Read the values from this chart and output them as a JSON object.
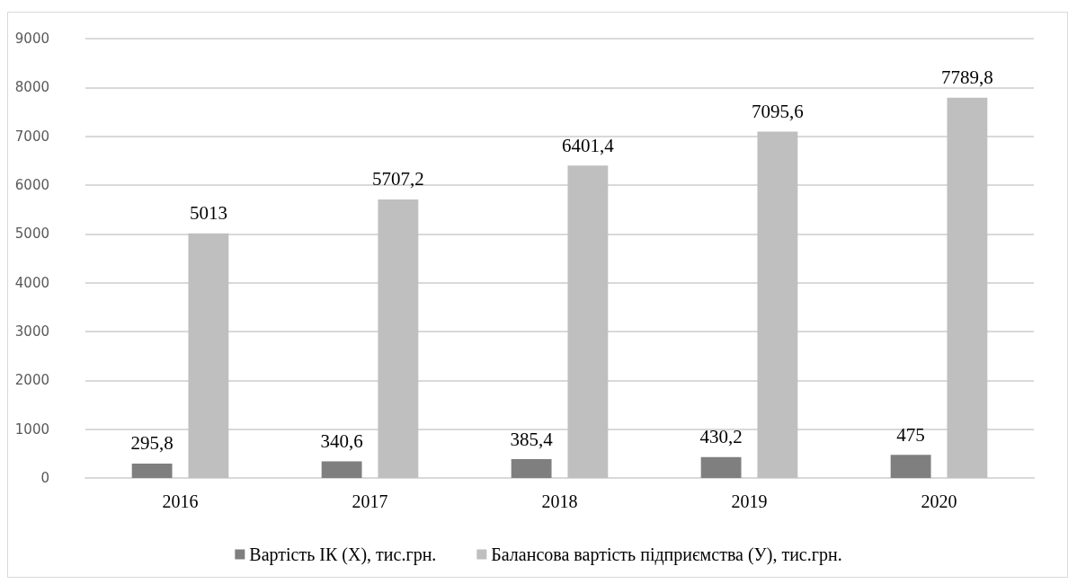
{
  "chart_data": {
    "type": "bar",
    "categories": [
      "2016",
      "2017",
      "2018",
      "2019",
      "2020"
    ],
    "series": [
      {
        "name": "Вартість ІК (Х), тис.грн.",
        "color": "#7f7f7f",
        "values": [
          295.8,
          340.6,
          385.4,
          430.2,
          475
        ],
        "value_labels": [
          "295,8",
          "340,6",
          "385,4",
          "430,2",
          "475"
        ]
      },
      {
        "name": "Балансова вартість підприємства (У), тис.грн.",
        "color": "#bfbfbf",
        "values": [
          5013,
          5707.2,
          6401.4,
          7095.6,
          7789.8
        ],
        "value_labels": [
          "5013",
          "5707,2",
          "6401,4",
          "7095,6",
          "7789,8"
        ]
      }
    ],
    "ylim": [
      0,
      9000
    ],
    "yticks": [
      0,
      1000,
      2000,
      3000,
      4000,
      5000,
      6000,
      7000,
      8000,
      9000
    ],
    "grid": "y",
    "legend": "bottom"
  }
}
